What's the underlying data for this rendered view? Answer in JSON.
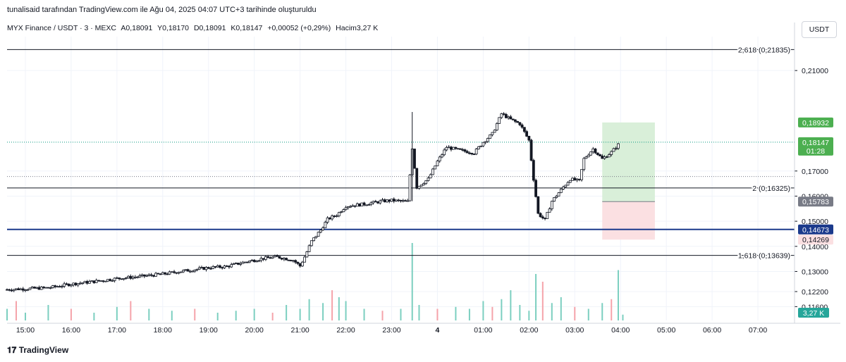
{
  "caption": "tunalisaid tarafından TradingView.com ile Ağu 04, 2025 04:07 UTC+3 tarihinde oluşturuldu",
  "legend": {
    "symbol": "MYX Finance / USDT · 3 · MEXC",
    "open": "A0,18091",
    "high": "Y0,18170",
    "low": "D0,18091",
    "close": "K0,18147",
    "change": "+0,00052 (+0,29%)",
    "volume": "Hacim3,27 K"
  },
  "unit_button": "USDT",
  "footer": "TradingView",
  "colors": {
    "up": "#089981",
    "down": "#f23645",
    "vol_up": "#7ccfc0",
    "vol_down": "#f5a3aa",
    "fib": "#131722",
    "support": "#1b3a8c",
    "tp_zone": "#d9efd9",
    "sl_zone": "#fbe0e2",
    "green_label": "#4caf50",
    "gray_label": "#787b86",
    "teal_label": "#26a69a"
  },
  "chart_data": {
    "type": "candlestick",
    "ylim": [
      0.1105,
      0.2235
    ],
    "y_ticks": [
      "0,21000",
      "0,17000",
      "0,16000",
      "0,15000",
      "0,14000",
      "0,13000",
      "0,12200",
      "0,11600"
    ],
    "y_tick_values": [
      0.21,
      0.17,
      0.16,
      0.15,
      0.14,
      0.13,
      0.122,
      0.116
    ],
    "x_ticks": [
      "15:00",
      "16:00",
      "17:00",
      "18:00",
      "19:00",
      "20:00",
      "21:00",
      "22:00",
      "23:00",
      "4",
      "01:00",
      "02:00",
      "03:00",
      "04:00",
      "05:00",
      "06:00",
      "07:00"
    ],
    "x_tick_hours": [
      15,
      16,
      17,
      18,
      19,
      20,
      21,
      22,
      23,
      24,
      25,
      26,
      27,
      28,
      29,
      30,
      31
    ],
    "fib_levels": [
      {
        "label": "2,618 (0,21835)",
        "value": 0.21835
      },
      {
        "label": "2 (0,16325)",
        "value": 0.16325
      },
      {
        "label": "1,618 (0,13639)",
        "value": 0.13639
      }
    ],
    "support_level": 0.14673,
    "price_labels": [
      {
        "text": "0,18932",
        "value": 0.18932,
        "color": "green"
      },
      {
        "text": "0,18147",
        "value": 0.18147,
        "color": "green",
        "sub": "01:28"
      },
      {
        "text": "0,15783",
        "value": 0.15783,
        "color": "gray"
      },
      {
        "text": "0,14673",
        "value": 0.14673,
        "color": "blue"
      },
      {
        "text": "0,14269",
        "value": 0.14269,
        "color": "pink"
      }
    ],
    "volume_label": "3,27 K",
    "position": {
      "start_hour": 27.6,
      "end_hour": 28.75,
      "entry": 0.15783,
      "target": 0.18932,
      "stop": 0.14269
    },
    "price_path": [
      [
        14.6,
        0.1228
      ],
      [
        15.5,
        0.1235
      ],
      [
        16.0,
        0.125
      ],
      [
        16.6,
        0.1262
      ],
      [
        17.0,
        0.1272
      ],
      [
        17.5,
        0.128
      ],
      [
        18.0,
        0.129
      ],
      [
        18.5,
        0.1303
      ],
      [
        19.0,
        0.1315
      ],
      [
        19.4,
        0.132
      ],
      [
        19.8,
        0.1338
      ],
      [
        20.2,
        0.1352
      ],
      [
        20.5,
        0.1358
      ],
      [
        20.85,
        0.1345
      ],
      [
        21.0,
        0.1322
      ],
      [
        21.1,
        0.1358
      ],
      [
        21.25,
        0.142
      ],
      [
        21.45,
        0.1465
      ],
      [
        21.6,
        0.1508
      ],
      [
        21.8,
        0.1525
      ],
      [
        22.0,
        0.156
      ],
      [
        22.4,
        0.1568
      ],
      [
        22.8,
        0.158
      ],
      [
        23.0,
        0.1583
      ],
      [
        23.35,
        0.1578
      ],
      [
        23.45,
        0.1792
      ],
      [
        23.55,
        0.1635
      ],
      [
        23.8,
        0.1668
      ],
      [
        24.0,
        0.1738
      ],
      [
        24.2,
        0.1795
      ],
      [
        24.5,
        0.1782
      ],
      [
        24.8,
        0.1772
      ],
      [
        25.0,
        0.1815
      ],
      [
        25.2,
        0.1848
      ],
      [
        25.4,
        0.1928
      ],
      [
        25.6,
        0.1905
      ],
      [
        25.8,
        0.1888
      ],
      [
        26.0,
        0.1822
      ],
      [
        26.1,
        0.1668
      ],
      [
        26.2,
        0.153
      ],
      [
        26.35,
        0.1505
      ],
      [
        26.5,
        0.158
      ],
      [
        26.7,
        0.1625
      ],
      [
        26.9,
        0.1668
      ],
      [
        27.1,
        0.166
      ],
      [
        27.2,
        0.1748
      ],
      [
        27.4,
        0.1788
      ],
      [
        27.6,
        0.1748
      ],
      [
        27.8,
        0.1775
      ],
      [
        28.0,
        0.18147
      ]
    ],
    "volume": [
      [
        14.6,
        0.3
      ],
      [
        14.8,
        0.5,
        "d"
      ],
      [
        15.0,
        0.2
      ],
      [
        15.5,
        0.4
      ],
      [
        16.0,
        0.3,
        "d"
      ],
      [
        16.5,
        0.2
      ],
      [
        17.0,
        0.35
      ],
      [
        17.3,
        0.5,
        "d"
      ],
      [
        17.7,
        0.3
      ],
      [
        18.2,
        0.25
      ],
      [
        18.7,
        0.3,
        "d"
      ],
      [
        19.2,
        0.2
      ],
      [
        19.6,
        0.25
      ],
      [
        20.0,
        0.3
      ],
      [
        20.4,
        0.2,
        "d"
      ],
      [
        20.7,
        0.4
      ],
      [
        21.0,
        0.3
      ],
      [
        21.2,
        0.55
      ],
      [
        21.5,
        0.45
      ],
      [
        21.7,
        0.78,
        "d"
      ],
      [
        21.85,
        0.6
      ],
      [
        22.0,
        0.5
      ],
      [
        22.4,
        0.3
      ],
      [
        22.8,
        0.25,
        "d"
      ],
      [
        23.2,
        0.3
      ],
      [
        23.45,
        2.0
      ],
      [
        23.6,
        0.4
      ],
      [
        24.0,
        0.3,
        "d"
      ],
      [
        24.4,
        0.35
      ],
      [
        24.7,
        0.3
      ],
      [
        25.0,
        0.5
      ],
      [
        25.2,
        0.35,
        "d"
      ],
      [
        25.4,
        0.55
      ],
      [
        25.6,
        0.78
      ],
      [
        25.8,
        0.4
      ],
      [
        26.0,
        0.25
      ],
      [
        26.15,
        1.2
      ],
      [
        26.3,
        1.0,
        "d"
      ],
      [
        26.5,
        0.45
      ],
      [
        26.7,
        0.6
      ],
      [
        27.0,
        0.35,
        "d"
      ],
      [
        27.3,
        0.3
      ],
      [
        27.6,
        0.45
      ],
      [
        27.8,
        0.55,
        "d"
      ],
      [
        27.95,
        1.3
      ],
      [
        28.05,
        0.15
      ]
    ]
  }
}
